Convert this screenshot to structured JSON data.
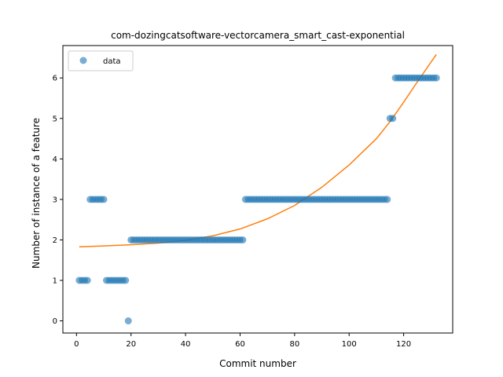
{
  "chart_data": {
    "type": "scatter",
    "title": "com-dozingcatsoftware-vectorcamera_smart_cast-exponential",
    "xlabel": "Commit number",
    "ylabel": "Number of instance of a feature",
    "xlim": [
      -5,
      138
    ],
    "ylim": [
      -0.3,
      6.8
    ],
    "xticks": [
      0,
      20,
      40,
      60,
      80,
      100,
      120
    ],
    "yticks": [
      0,
      1,
      2,
      3,
      4,
      5,
      6
    ],
    "grid": false,
    "legend": {
      "position": "top-left",
      "entries": [
        "data"
      ]
    },
    "colors": {
      "data": "#1f77b4",
      "fit": "#ff7f0e"
    },
    "series": [
      {
        "name": "data",
        "style": "markers",
        "x": [
          1,
          2,
          3,
          4,
          5,
          6,
          7,
          8,
          9,
          10,
          11,
          12,
          13,
          14,
          15,
          16,
          17,
          18,
          19,
          20,
          21,
          22,
          23,
          24,
          25,
          26,
          27,
          28,
          29,
          30,
          31,
          32,
          33,
          34,
          35,
          36,
          37,
          38,
          39,
          40,
          41,
          42,
          43,
          44,
          45,
          46,
          47,
          48,
          49,
          50,
          51,
          52,
          53,
          54,
          55,
          56,
          57,
          58,
          59,
          60,
          61,
          62,
          63,
          64,
          65,
          66,
          67,
          68,
          69,
          70,
          71,
          72,
          73,
          74,
          75,
          76,
          77,
          78,
          79,
          80,
          81,
          82,
          83,
          84,
          85,
          86,
          87,
          88,
          89,
          90,
          91,
          92,
          93,
          94,
          95,
          96,
          97,
          98,
          99,
          100,
          101,
          102,
          103,
          104,
          105,
          106,
          107,
          108,
          109,
          110,
          111,
          112,
          113,
          114,
          115,
          116,
          117,
          118,
          119,
          120,
          121,
          122,
          123,
          124,
          125,
          126,
          127,
          128,
          129,
          130,
          131,
          132
        ],
        "y": [
          1,
          1,
          1,
          1,
          3,
          3,
          3,
          3,
          3,
          3,
          1,
          1,
          1,
          1,
          1,
          1,
          1,
          1,
          0,
          2,
          2,
          2,
          2,
          2,
          2,
          2,
          2,
          2,
          2,
          2,
          2,
          2,
          2,
          2,
          2,
          2,
          2,
          2,
          2,
          2,
          2,
          2,
          2,
          2,
          2,
          2,
          2,
          2,
          2,
          2,
          2,
          2,
          2,
          2,
          2,
          2,
          2,
          2,
          2,
          2,
          2,
          3,
          3,
          3,
          3,
          3,
          3,
          3,
          3,
          3,
          3,
          3,
          3,
          3,
          3,
          3,
          3,
          3,
          3,
          3,
          3,
          3,
          3,
          3,
          3,
          3,
          3,
          3,
          3,
          3,
          3,
          3,
          3,
          3,
          3,
          3,
          3,
          3,
          3,
          3,
          3,
          3,
          3,
          3,
          3,
          3,
          3,
          3,
          3,
          3,
          3,
          3,
          3,
          3,
          5,
          5,
          6,
          6,
          6,
          6,
          6,
          6,
          6,
          6,
          6,
          6,
          6,
          6,
          6,
          6,
          6,
          6
        ]
      },
      {
        "name": "",
        "style": "line",
        "x": [
          1,
          10,
          20,
          30,
          40,
          50,
          60,
          70,
          80,
          90,
          100,
          110,
          115,
          120,
          125,
          132
        ],
        "y": [
          1.83,
          1.85,
          1.88,
          1.92,
          1.99,
          2.1,
          2.27,
          2.52,
          2.85,
          3.3,
          3.85,
          4.5,
          4.92,
          5.4,
          5.9,
          6.58
        ]
      }
    ]
  }
}
